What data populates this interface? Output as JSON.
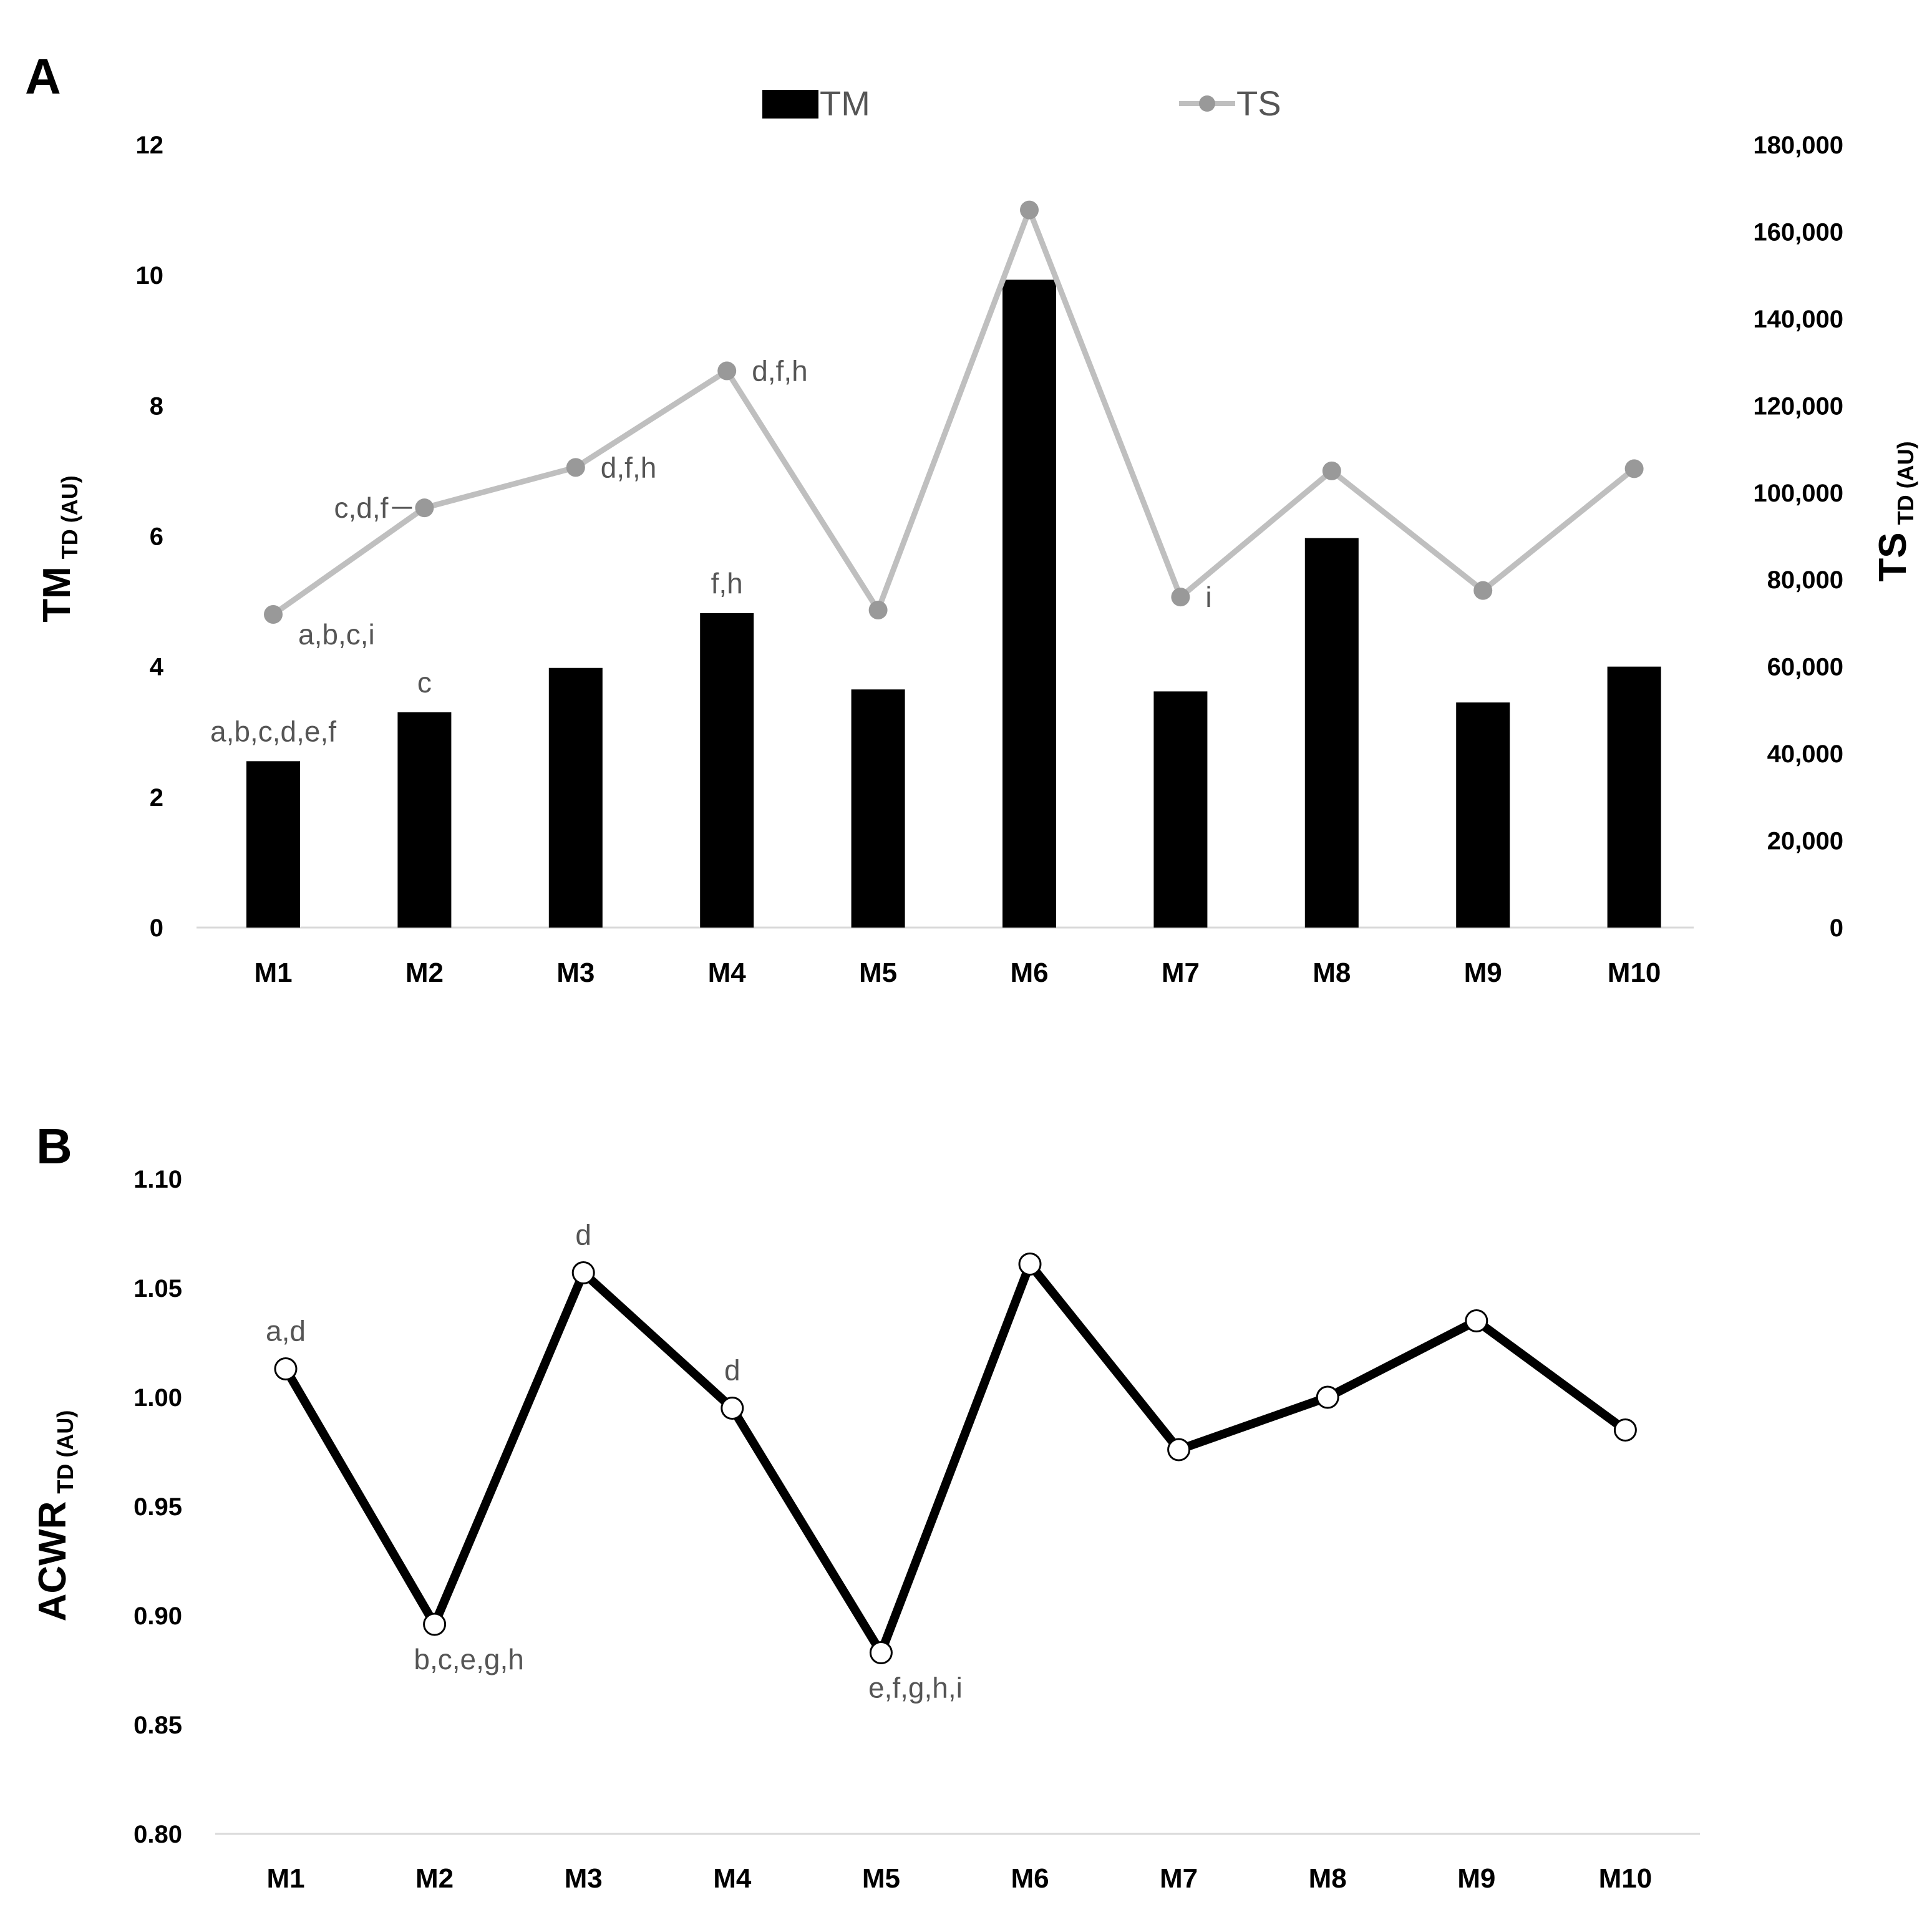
{
  "chart_data": [
    {
      "panel": "A",
      "type": "bar+line",
      "categories": [
        "M1",
        "M2",
        "M3",
        "M4",
        "M5",
        "M6",
        "M7",
        "M8",
        "M9",
        "M10"
      ],
      "series": [
        {
          "name": "TM",
          "type": "bar",
          "axis": "left",
          "color": "#000000",
          "values": [
            2.55,
            3.3,
            3.98,
            4.82,
            3.65,
            9.93,
            3.62,
            5.97,
            3.45,
            4.0
          ]
        },
        {
          "name": "TS",
          "type": "line",
          "axis": "right",
          "color": "#bfbfbf",
          "marker_color": "#999999",
          "values": [
            72000,
            96500,
            105800,
            128000,
            73000,
            165000,
            76000,
            105000,
            77500,
            105500
          ]
        }
      ],
      "left_axis": {
        "label_main": "TM",
        "label_sub": "TD (AU)",
        "ylim": [
          0,
          12
        ],
        "ticks": [
          "0",
          "2",
          "4",
          "6",
          "8",
          "10",
          "12"
        ],
        "tick_values": [
          0,
          2,
          4,
          6,
          8,
          10,
          12
        ]
      },
      "right_axis": {
        "label_main": "TS",
        "label_sub": "TD (AU)",
        "ylim": [
          0,
          180000
        ],
        "ticks": [
          "0",
          "20,000",
          "40,000",
          "60,000",
          "80,000",
          "100,000",
          "120,000",
          "140,000",
          "160,000",
          "180,000"
        ],
        "tick_values": [
          0,
          20000,
          40000,
          60000,
          80000,
          100000,
          120000,
          140000,
          160000,
          180000
        ]
      },
      "legend": {
        "position": "top-center",
        "entries": [
          "TM",
          "TS"
        ]
      },
      "annotations": [
        {
          "text": "a,b,c,d,e,f",
          "category": "M1",
          "target": "TM",
          "anchor": "above"
        },
        {
          "text": "c",
          "category": "M2",
          "target": "TM",
          "anchor": "above"
        },
        {
          "text": "f,h",
          "category": "M4",
          "target": "TM",
          "anchor": "above"
        },
        {
          "text": "a,b,c,i",
          "category": "M1",
          "target": "TS",
          "anchor": "right"
        },
        {
          "text": "c,d,f",
          "category": "M2",
          "target": "TS",
          "anchor": "left"
        },
        {
          "text": "d,f,h",
          "category": "M3",
          "target": "TS",
          "anchor": "right"
        },
        {
          "text": "d,f,h",
          "category": "M4",
          "target": "TS",
          "anchor": "right"
        },
        {
          "text": "i",
          "category": "M7",
          "target": "TS",
          "anchor": "right"
        }
      ]
    },
    {
      "panel": "B",
      "type": "line",
      "categories": [
        "M1",
        "M2",
        "M3",
        "M4",
        "M5",
        "M6",
        "M7",
        "M8",
        "M9",
        "M10"
      ],
      "series": [
        {
          "name": "ACWR",
          "color": "#000000",
          "marker_fill": "#ffffff",
          "values": [
            1.013,
            0.896,
            1.057,
            0.995,
            0.883,
            1.061,
            0.976,
            1.0,
            1.035,
            0.985
          ]
        }
      ],
      "y_axis": {
        "label_main": "ACWR",
        "label_sub": "TD (AU)",
        "ylim": [
          0.8,
          1.1
        ],
        "ticks": [
          "0.80",
          "0.85",
          "0.90",
          "0.95",
          "1.00",
          "1.05",
          "1.10"
        ],
        "tick_values": [
          0.8,
          0.85,
          0.9,
          0.95,
          1.0,
          1.05,
          1.1
        ]
      },
      "annotations": [
        {
          "text": "a,d",
          "category": "M1",
          "anchor": "above"
        },
        {
          "text": "b,c,e,g,h",
          "category": "M2",
          "anchor": "below"
        },
        {
          "text": "d",
          "category": "M3",
          "anchor": "above"
        },
        {
          "text": "d",
          "category": "M4",
          "anchor": "above"
        },
        {
          "text": "e,f,g,h,i",
          "category": "M5",
          "anchor": "below"
        }
      ]
    }
  ],
  "panels": {
    "a_label": "A",
    "b_label": "B"
  }
}
